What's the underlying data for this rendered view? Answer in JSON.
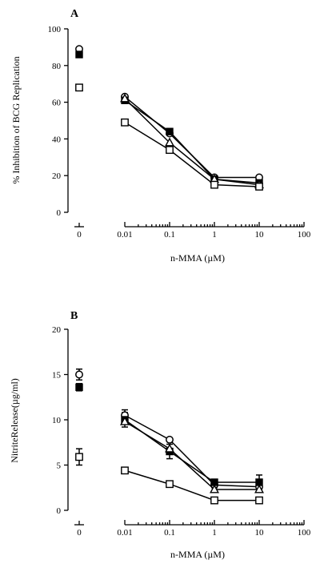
{
  "chart_data": [
    {
      "panel": "A",
      "type": "scatter",
      "xlabel": "n-MMA (µM)",
      "ylabel": "% Inhibition of BCG Replication",
      "ylim": [
        0,
        100
      ],
      "y_ticks": [
        "0",
        "20",
        "40",
        "60",
        "80",
        "100"
      ],
      "x_ticks": [
        "0.01",
        "0.1",
        "1",
        "10",
        "100"
      ],
      "x_zero_label": "0",
      "xscale": "log",
      "series": [
        {
          "marker": "open-circle",
          "zero": 89,
          "x": [
            0.01,
            0.1,
            1,
            10
          ],
          "y": [
            63,
            43,
            19,
            19
          ]
        },
        {
          "marker": "filled-square",
          "zero": 86,
          "x": [
            0.01,
            0.1,
            1,
            10
          ],
          "y": [
            61,
            44,
            18,
            16
          ]
        },
        {
          "marker": "open-triangle",
          "zero": null,
          "x": [
            0.01,
            0.1,
            1,
            10
          ],
          "y": [
            62,
            38,
            18,
            15
          ]
        },
        {
          "marker": "open-square",
          "zero": 68,
          "x": [
            0.01,
            0.1,
            1,
            10
          ],
          "y": [
            49,
            34,
            15,
            14
          ]
        }
      ]
    },
    {
      "panel": "B",
      "type": "scatter",
      "xlabel": "n-MMA (µM)",
      "ylabel": "NitriteRelease(µg/ml)",
      "ylim": [
        0,
        20
      ],
      "y_ticks": [
        "0",
        "5",
        "10",
        "15",
        "20"
      ],
      "x_ticks": [
        "0.01",
        "0.1",
        "1",
        "10",
        "100"
      ],
      "x_zero_label": "0",
      "xscale": "log",
      "series": [
        {
          "marker": "open-circle",
          "zero": 15,
          "zero_err": 0.6,
          "x": [
            0.01,
            0.1,
            1,
            10
          ],
          "y": [
            10.5,
            7.8,
            2.8,
            2.6
          ],
          "err": [
            0.6,
            0,
            0.3,
            0.4
          ]
        },
        {
          "marker": "filled-square",
          "zero": 13.6,
          "zero_err": 0.4,
          "x": [
            0.01,
            0.1,
            1,
            10
          ],
          "y": [
            10,
            6.5,
            3.1,
            3.1
          ],
          "err": [
            0.8,
            0.8,
            0.3,
            0.8
          ]
        },
        {
          "marker": "open-triangle",
          "zero": null,
          "zero_err": 0,
          "x": [
            0.01,
            0.1,
            1,
            10
          ],
          "y": [
            9.8,
            6.8,
            2.3,
            2.3
          ],
          "err": [
            0,
            0,
            0,
            0
          ]
        },
        {
          "marker": "open-square",
          "zero": 5.9,
          "zero_err": 0.9,
          "x": [
            0.01,
            0.1,
            1,
            10
          ],
          "y": [
            4.4,
            2.9,
            1.1,
            1.1
          ],
          "err": [
            0,
            0,
            0,
            0
          ]
        }
      ]
    }
  ]
}
